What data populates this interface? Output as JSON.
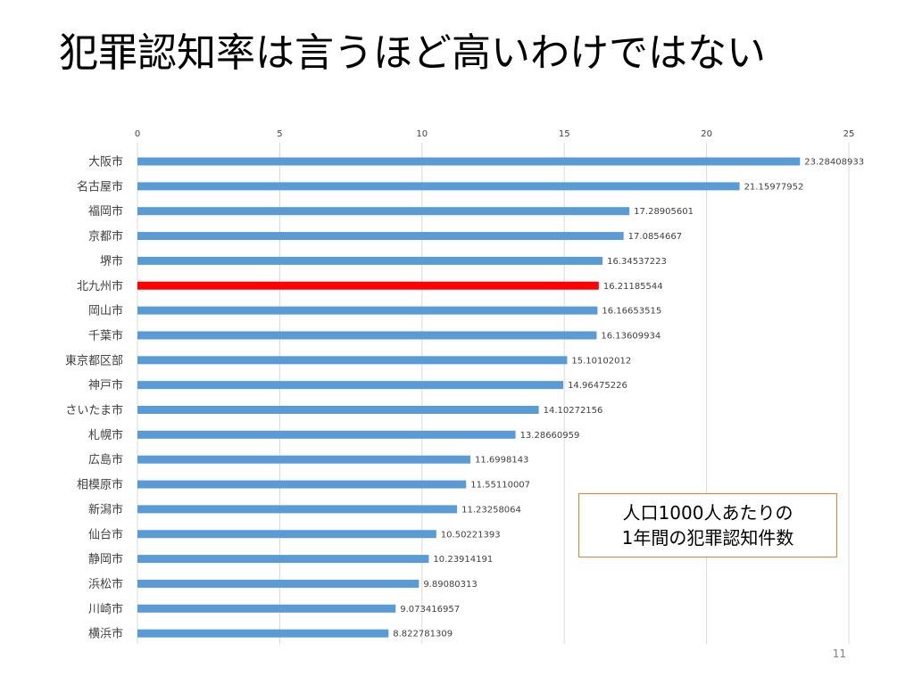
{
  "slide": {
    "title": "犯罪認知率は言うほど高いわけではない",
    "page_number": "11"
  },
  "annotation": {
    "line1": "人口1000人あたりの",
    "line2": "1年間の犯罪認知件数"
  },
  "colors": {
    "bar": "#5B9BD5",
    "highlight": "#FF0000",
    "annotation_border": "#ED7D31"
  },
  "chart_data": {
    "type": "bar",
    "orientation": "horizontal",
    "title": "",
    "xlabel": "",
    "ylabel": "",
    "xlim": [
      0,
      25
    ],
    "ticks": [
      0,
      5,
      10,
      15,
      20,
      25
    ],
    "x_axis_position": "top",
    "grid": true,
    "highlight_category": "北九州市",
    "categories": [
      "大阪市",
      "名古屋市",
      "福岡市",
      "京都市",
      "堺市",
      "北九州市",
      "岡山市",
      "千葉市",
      "東京都区部",
      "神戸市",
      "さいたま市",
      "札幌市",
      "広島市",
      "相模原市",
      "新潟市",
      "仙台市",
      "静岡市",
      "浜松市",
      "川崎市",
      "横浜市"
    ],
    "values": [
      23.28408933,
      21.15977952,
      17.28905601,
      17.0854667,
      16.34537223,
      16.21185544,
      16.16653515,
      16.13609934,
      15.10102012,
      14.96475226,
      14.10272156,
      13.28660959,
      11.6998143,
      11.55110007,
      11.23258064,
      10.50221393,
      10.23914191,
      9.89080313,
      9.073416957,
      8.822781309
    ],
    "value_labels": [
      "23.28408933",
      "21.15977952",
      "17.28905601",
      "17.0854667",
      "16.34537223",
      "16.21185544",
      "16.16653515",
      "16.13609934",
      "15.10102012",
      "14.96475226",
      "14.10272156",
      "13.28660959",
      "11.6998143",
      "11.55110007",
      "11.23258064",
      "10.50221393",
      "10.23914191",
      "9.89080313",
      "9.073416957",
      "8.822781309"
    ]
  }
}
